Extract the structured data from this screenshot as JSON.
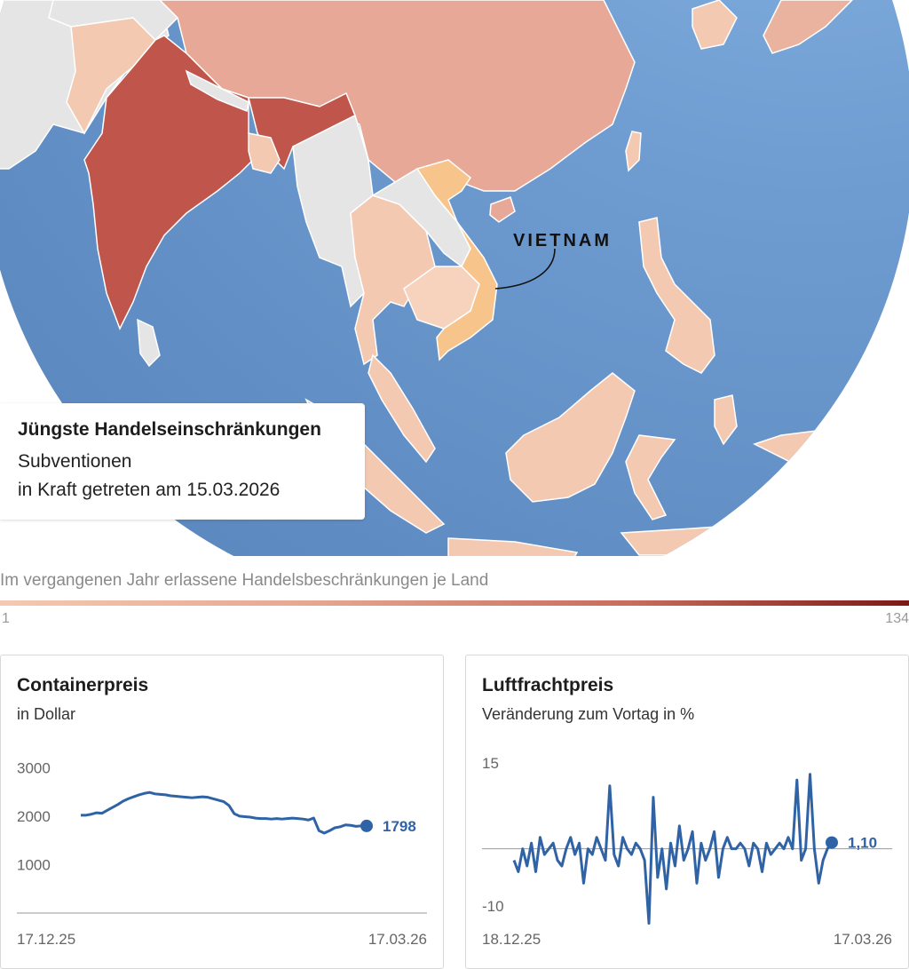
{
  "map": {
    "label_vietnam": "VIETNAM",
    "colors": {
      "ocean": "#5f8dc3",
      "ocean_light": "#86b0e0",
      "nodata": "#e5e5e5",
      "china": "#e8a898",
      "india": "#c0554c",
      "vietnam": "#f7c58c",
      "light": "#f4c9b2",
      "medium": "#eab3a0"
    }
  },
  "info": {
    "title": "Jüngste Handelseinschränkungen",
    "line1": "Subventionen",
    "line2": "in Kraft getreten am 15.03.2026"
  },
  "legend": {
    "title": "Im vergangenen Jahr erlassene Handelsbeschränkungen je Land",
    "min": "1",
    "max": "134"
  },
  "chart_data": [
    {
      "type": "line",
      "title": "Containerpreis",
      "subtitle": "in Dollar",
      "yticks": [
        "3000",
        "2000",
        "1000"
      ],
      "ylim": [
        0,
        3300
      ],
      "x_start_label": "17.12.25",
      "x_end_label": "17.03.26",
      "end_value_label": "1798",
      "color": "#2f63a5",
      "values": [
        2020,
        2020,
        2040,
        2070,
        2060,
        2120,
        2180,
        2240,
        2310,
        2360,
        2400,
        2440,
        2470,
        2490,
        2460,
        2450,
        2440,
        2420,
        2410,
        2400,
        2390,
        2380,
        2390,
        2400,
        2390,
        2360,
        2330,
        2300,
        2220,
        2050,
        2000,
        1990,
        1980,
        1960,
        1950,
        1950,
        1940,
        1950,
        1940,
        1950,
        1960,
        1950,
        1940,
        1920,
        1960,
        1700,
        1650,
        1700,
        1760,
        1780,
        1820,
        1810,
        1790,
        1800,
        1798
      ]
    },
    {
      "type": "line",
      "title": "Luftfrachtpreis",
      "subtitle": "Veränderung zum Vortag in %",
      "yticks": [
        "15",
        "-10"
      ],
      "ytick_values": [
        15,
        -10
      ],
      "ylim": [
        -14,
        17
      ],
      "x_start_label": "18.12.25",
      "x_end_label": "17.03.26",
      "end_value_label": "1,10",
      "color": "#2f63a5",
      "values": [
        -2,
        -4,
        0,
        -3,
        1,
        -4,
        2,
        -1,
        0,
        1,
        -2,
        -3,
        0,
        2,
        -1,
        1,
        -6,
        0,
        -1,
        2,
        0,
        -2,
        11,
        -1,
        -3,
        2,
        0,
        -1,
        1,
        0,
        -2,
        -13,
        9,
        -5,
        0,
        -7,
        1,
        -3,
        4,
        -2,
        0,
        3,
        -6,
        1,
        -2,
        0,
        3,
        -5,
        0,
        2,
        0,
        0,
        1,
        0,
        -3,
        1,
        0,
        -4,
        1,
        -1,
        0,
        1,
        0,
        2,
        0,
        12,
        -2,
        0,
        13,
        0,
        -6,
        -2,
        0,
        1.1
      ]
    }
  ]
}
